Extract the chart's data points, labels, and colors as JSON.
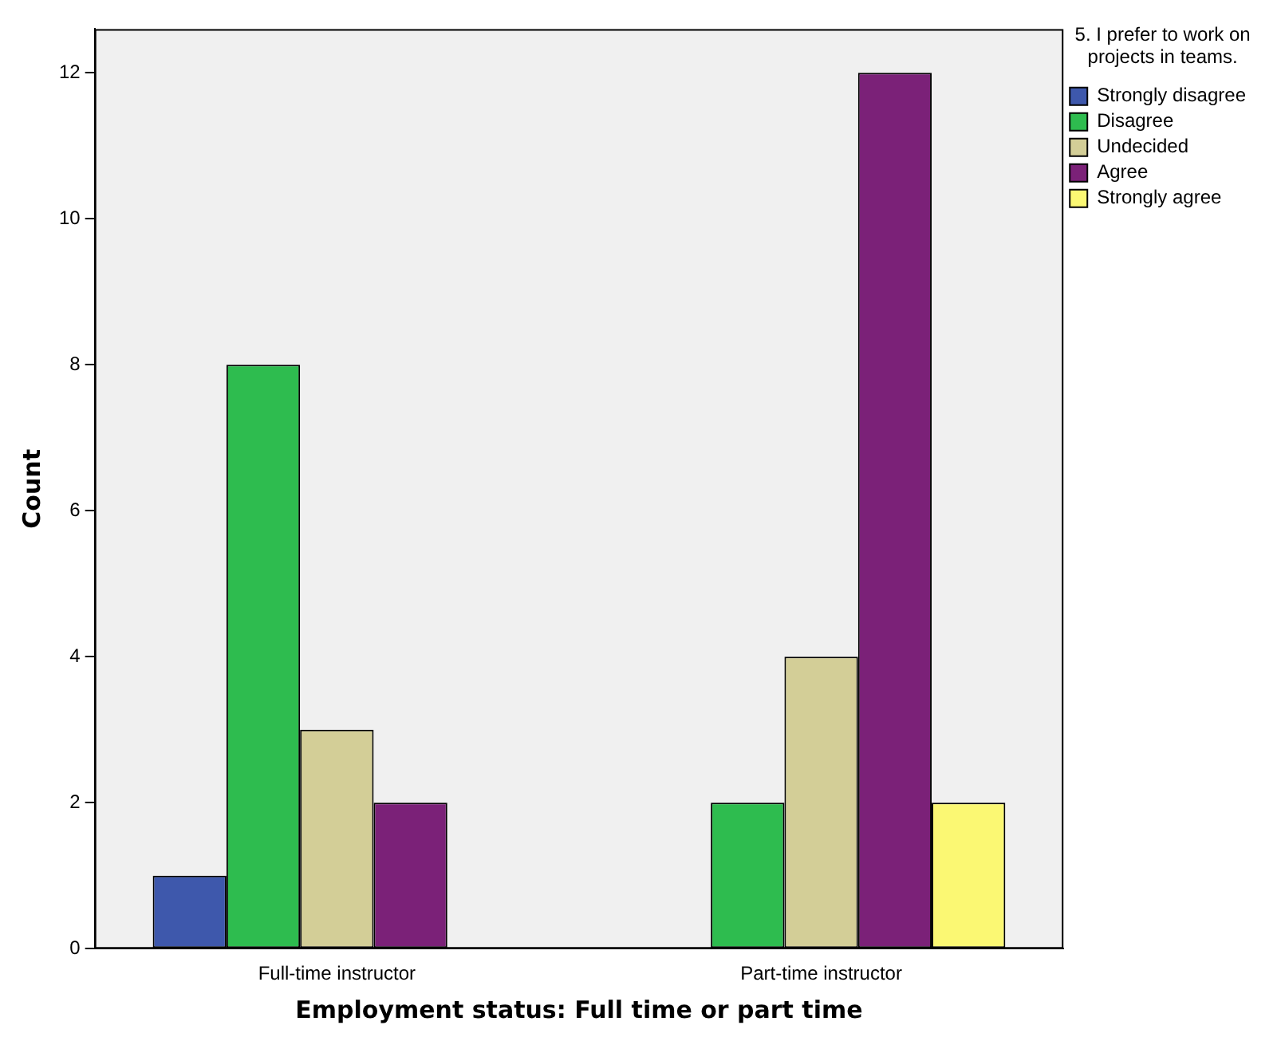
{
  "chart_data": {
    "type": "bar",
    "xlabel": "Employment status: Full time or part time",
    "ylabel": "Count",
    "legend_title": "5. I prefer to work on projects in teams.",
    "categories": [
      "Full-time instructor",
      "Part-time instructor"
    ],
    "series": [
      {
        "name": "Strongly disagree",
        "color": "#3e58ac",
        "values": [
          1,
          0
        ]
      },
      {
        "name": "Disagree",
        "color": "#2ebc4f",
        "values": [
          8,
          2
        ]
      },
      {
        "name": "Undecided",
        "color": "#d3ce97",
        "values": [
          3,
          4
        ]
      },
      {
        "name": "Agree",
        "color": "#7b2178",
        "values": [
          2,
          12
        ]
      },
      {
        "name": "Strongly agree",
        "color": "#fbf873",
        "values": [
          0,
          2
        ]
      }
    ],
    "ylim": [
      0,
      12.6
    ],
    "yticks": [
      0,
      2,
      4,
      6,
      8,
      10,
      12
    ],
    "grid": false,
    "legend": "top right"
  }
}
